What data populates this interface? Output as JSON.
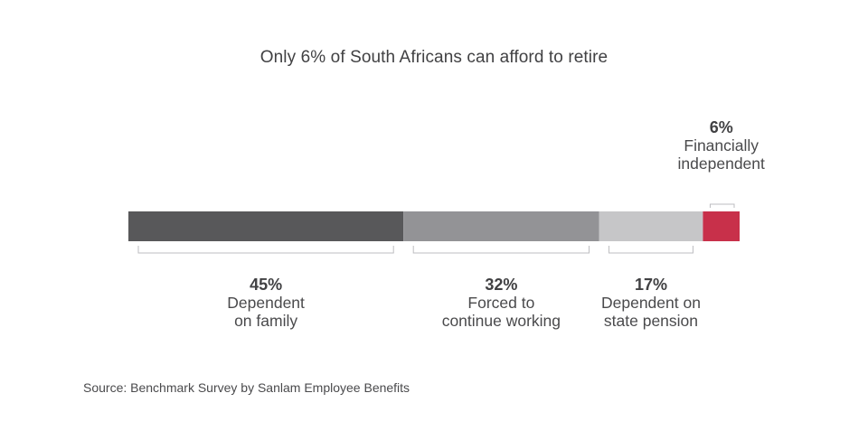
{
  "chart_data": {
    "type": "bar",
    "subtype": "stacked-100-percent-horizontal",
    "title": "Only 6% of South Africans can afford to retire",
    "unit": "%",
    "categories": [
      "Dependent on family",
      "Forced to continue working",
      "Dependent on state pension",
      "Financially independent"
    ],
    "series": [
      {
        "values": [
          45,
          32,
          17,
          6
        ],
        "value_labels": [
          "45%",
          "32%",
          "17%",
          "6%"
        ],
        "label_lines": [
          [
            "Dependent",
            "on family"
          ],
          [
            "Forced to",
            "continue working"
          ],
          [
            "Dependent on",
            "state pension"
          ],
          [
            "Financially",
            "independent"
          ]
        ],
        "label_positions": [
          "below",
          "below",
          "below",
          "above"
        ],
        "colors": [
          "#58585a",
          "#939396",
          "#c6c6c8",
          "#c8304a"
        ]
      }
    ],
    "source": "Source: Benchmark Survey by Sanlam Employee Benefits"
  }
}
